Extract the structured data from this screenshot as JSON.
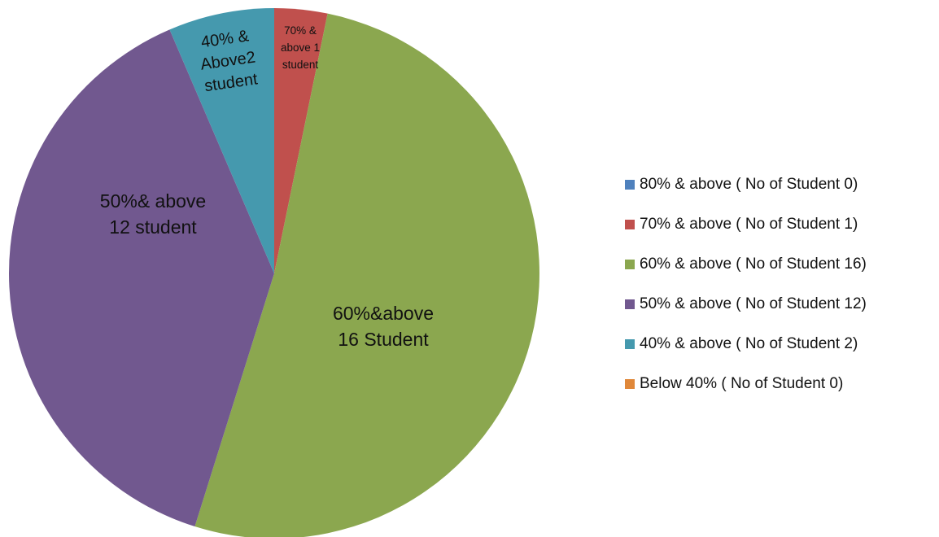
{
  "chart_data": {
    "type": "pie",
    "slices": [
      {
        "legend": "80% & above ( No of Student 0)",
        "value": 0,
        "color": "#4F81BD",
        "label": []
      },
      {
        "legend": "70% & above ( No of Student 1)",
        "value": 1,
        "color": "#C0504D",
        "label": [
          "70% &",
          "above 1",
          "student"
        ]
      },
      {
        "legend": "60% & above ( No of Student 16)",
        "value": 16,
        "color": "#8BA74F",
        "label": [
          "60%&above",
          "16 Student"
        ]
      },
      {
        "legend": "50% & above ( No of Student 12)",
        "value": 12,
        "color": "#71588F",
        "label": [
          "50%& above",
          "12 student"
        ]
      },
      {
        "legend": "40% & above ( No of Student 2)",
        "value": 2,
        "color": "#4599AE",
        "label": [
          "40%  &",
          "Above2",
          "student"
        ]
      },
      {
        "legend": "Below 40% ( No of Student 0)",
        "value": 0,
        "color": "#E0883A",
        "label": []
      }
    ],
    "start_angle": "12 o'clock",
    "direction": "clockwise",
    "legend_position": "right"
  }
}
